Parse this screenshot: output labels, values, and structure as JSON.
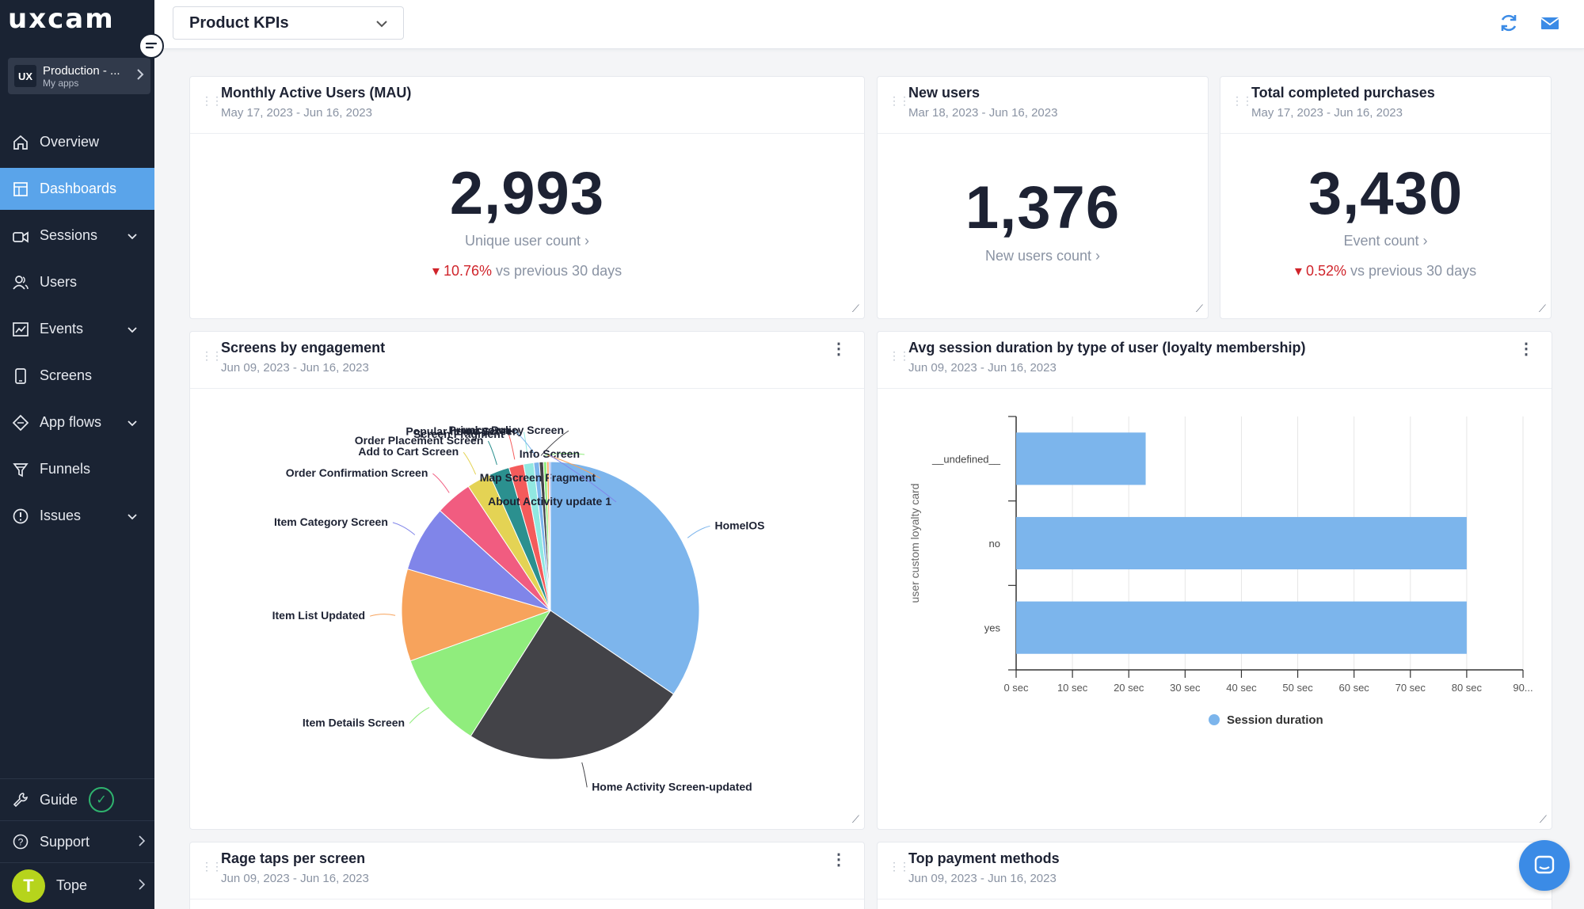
{
  "brand": {
    "logo_text": "uxcam"
  },
  "app_switcher": {
    "name": "Production - ...",
    "sub": "My apps",
    "badge": "UX"
  },
  "nav": [
    {
      "label": "Overview",
      "icon": "home-icon",
      "active": false,
      "caret": false
    },
    {
      "label": "Dashboards",
      "icon": "dashboard-icon",
      "active": true,
      "caret": false
    },
    {
      "label": "Sessions",
      "icon": "video-icon",
      "active": false,
      "caret": true
    },
    {
      "label": "Users",
      "icon": "users-icon",
      "active": false,
      "caret": false
    },
    {
      "label": "Events",
      "icon": "chart-line-icon",
      "active": false,
      "caret": true
    },
    {
      "label": "Screens",
      "icon": "phone-icon",
      "active": false,
      "caret": false
    },
    {
      "label": "App flows",
      "icon": "flow-icon",
      "active": false,
      "caret": true
    },
    {
      "label": "Funnels",
      "icon": "funnel-icon",
      "active": false,
      "caret": false
    },
    {
      "label": "Issues",
      "icon": "alert-icon",
      "active": false,
      "caret": true
    }
  ],
  "bottom_nav": {
    "guide": "Guide",
    "support": "Support",
    "user_name": "Tope",
    "user_initial": "T"
  },
  "topbar": {
    "dashboard_name": "Product KPIs"
  },
  "kpis": {
    "mau": {
      "title": "Monthly Active Users (MAU)",
      "date": "May 17, 2023 - Jun 16, 2023",
      "value": "2,993",
      "label": "Unique user count",
      "delta": "10.76%",
      "delta_text": "vs previous 30 days"
    },
    "new_users": {
      "title": "New users",
      "date": "Mar 18, 2023 - Jun 16, 2023",
      "value": "1,376",
      "label": "New users count"
    },
    "purchases": {
      "title": "Total completed purchases",
      "date": "May 17, 2023 - Jun 16, 2023",
      "value": "3,430",
      "label": "Event count",
      "delta": "0.52%",
      "delta_text": "vs previous 30 days"
    }
  },
  "screens_card": {
    "title": "Screens by engagement",
    "date": "Jun 09, 2023 - Jun 16, 2023"
  },
  "session_card": {
    "title": "Avg session duration by type of user (loyalty membership)",
    "date": "Jun 09, 2023 - Jun 16, 2023"
  },
  "rage_card": {
    "title": "Rage taps per screen",
    "date": "Jun 09, 2023 - Jun 16, 2023"
  },
  "payment_card": {
    "title": "Top payment methods",
    "date": "Jun 09, 2023 - Jun 16, 2023"
  },
  "chart_data": [
    {
      "type": "pie",
      "title": "Screens by engagement",
      "slices": [
        {
          "label": "HomeIOS",
          "value": 34.5,
          "color": "#7db5ec"
        },
        {
          "label": "Home Activity Screen-updated",
          "value": 24.5,
          "color": "#434348"
        },
        {
          "label": "Item Details Screen",
          "value": 10.5,
          "color": "#90ed7d"
        },
        {
          "label": "Item List Updated",
          "value": 10.0,
          "color": "#f7a35c"
        },
        {
          "label": "Item Category Screen",
          "value": 7.2,
          "color": "#8085e9"
        },
        {
          "label": "Order Confirmation Screen",
          "value": 4.0,
          "color": "#f15c80"
        },
        {
          "label": "Add to Cart Screen",
          "value": 2.6,
          "color": "#e4d354"
        },
        {
          "label": "Order Placement Screen",
          "value": 2.2,
          "color": "#2b908f"
        },
        {
          "label": "Screen Fragment",
          "value": 1.6,
          "color": "#f45b5b"
        },
        {
          "label": "Popular Items Screen",
          "value": 1.1,
          "color": "#91e8e1"
        },
        {
          "label": "unknown",
          "value": 0.6,
          "color": "#7cb5ec"
        },
        {
          "label": "Privacy Policy Screen",
          "value": 0.45,
          "color": "#434348"
        },
        {
          "label": "Info Screen",
          "value": 0.35,
          "color": "#90ed7d"
        },
        {
          "label": "Map Screen Fragment",
          "value": 0.25,
          "color": "#f7a35c"
        },
        {
          "label": "About Activity update 1",
          "value": 0.15,
          "color": "#8085e9"
        }
      ]
    },
    {
      "type": "bar",
      "orientation": "horizontal",
      "title": "Avg session duration by type of user (loyalty membership)",
      "categories": [
        "__undefined__",
        "no",
        "yes"
      ],
      "series": [
        {
          "name": "Session duration",
          "values": [
            23,
            80,
            80
          ],
          "color": "#7cb5ec"
        }
      ],
      "xlim": [
        0,
        90
      ],
      "xticks": [
        "0 sec",
        "10 sec",
        "20 sec",
        "30 sec",
        "40 sec",
        "50 sec",
        "60 sec",
        "70 sec",
        "80 sec",
        "90..."
      ],
      "ylabel": "user custom loyalty card",
      "legend": "bottom-center",
      "grid": true
    }
  ]
}
